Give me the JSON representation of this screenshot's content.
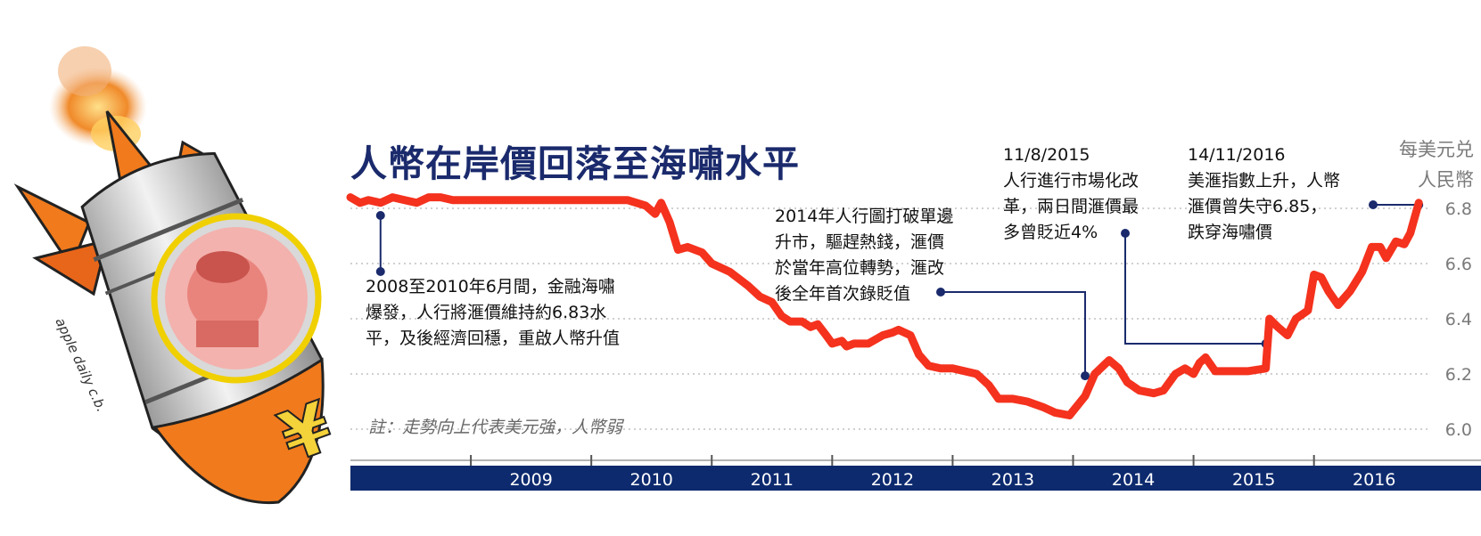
{
  "title": "人幣在岸價回落至海嘯水平",
  "unit_line1": "每美元兑",
  "unit_line2": "人民幣",
  "footnote": "註：走勢向上代表美元強，人幣弱",
  "annotations": [
    {
      "lines": [
        "2008至2010年6月間，金融海嘯",
        "爆發，人行將滙價維持約6.83水",
        "平，及後經濟回穩，重啟人幣升值"
      ],
      "x": 2008.25,
      "y": 6.8
    },
    {
      "lines": [
        "2014年人行圖打破單邊",
        "升市，驅趕熱錢，滙價",
        "於當年高位轉勢，滙改",
        "後全年首次錄貶值"
      ],
      "x": 2014.1,
      "y": 6.29
    },
    {
      "lines": [
        "11/8/2015",
        "人行進行市場化改",
        "革，兩日間滙價最",
        "多曾貶近4%"
      ],
      "x": 2015.6,
      "y": 6.36
    },
    {
      "lines": [
        "14/11/2016",
        "美滙指數上升，人幣",
        "滙價曾失守6.85，",
        "跌穿海嘯價"
      ],
      "x": 2016.87,
      "y": 6.82
    }
  ],
  "chart_data": {
    "type": "line",
    "title": "人幣在岸價回落至海嘯水平",
    "xlabel": "",
    "ylabel": "每美元兑 人民幣",
    "ylim": [
      6.0,
      6.9
    ],
    "xlim": [
      2008.0,
      2016.95
    ],
    "x_tick_labels": [
      "2009",
      "2010",
      "2011",
      "2012",
      "2013",
      "2014",
      "2015",
      "2016"
    ],
    "y_tick_labels": [
      "6.0",
      "6.2",
      "6.4",
      "6.6",
      "6.8"
    ],
    "y_ticks": [
      6.0,
      6.2,
      6.4,
      6.6,
      6.8
    ],
    "grid": "horizontal-dotted",
    "line_color": "#f4321e",
    "axis_band_color": "#0d2a6e",
    "series": [
      {
        "points": [
          [
            2008.0,
            6.84
          ],
          [
            2008.08,
            6.82
          ],
          [
            2008.15,
            6.83
          ],
          [
            2008.25,
            6.82
          ],
          [
            2008.35,
            6.84
          ],
          [
            2008.45,
            6.83
          ],
          [
            2008.55,
            6.82
          ],
          [
            2008.65,
            6.84
          ],
          [
            2008.75,
            6.84
          ],
          [
            2008.85,
            6.83
          ],
          [
            2009.0,
            6.83
          ],
          [
            2009.5,
            6.83
          ],
          [
            2010.0,
            6.83
          ],
          [
            2010.3,
            6.83
          ],
          [
            2010.45,
            6.81
          ],
          [
            2010.53,
            6.78
          ],
          [
            2010.58,
            6.82
          ],
          [
            2010.65,
            6.75
          ],
          [
            2010.72,
            6.65
          ],
          [
            2010.8,
            6.66
          ],
          [
            2010.92,
            6.64
          ],
          [
            2011.0,
            6.6
          ],
          [
            2011.15,
            6.57
          ],
          [
            2011.3,
            6.52
          ],
          [
            2011.4,
            6.48
          ],
          [
            2011.5,
            6.46
          ],
          [
            2011.58,
            6.41
          ],
          [
            2011.65,
            6.39
          ],
          [
            2011.75,
            6.39
          ],
          [
            2011.82,
            6.37
          ],
          [
            2011.88,
            6.38
          ],
          [
            2011.95,
            6.34
          ],
          [
            2012.0,
            6.31
          ],
          [
            2012.08,
            6.32
          ],
          [
            2012.12,
            6.3
          ],
          [
            2012.18,
            6.31
          ],
          [
            2012.3,
            6.31
          ],
          [
            2012.42,
            6.34
          ],
          [
            2012.5,
            6.35
          ],
          [
            2012.55,
            6.36
          ],
          [
            2012.65,
            6.34
          ],
          [
            2012.72,
            6.27
          ],
          [
            2012.8,
            6.23
          ],
          [
            2012.9,
            6.22
          ],
          [
            2013.0,
            6.22
          ],
          [
            2013.1,
            6.21
          ],
          [
            2013.2,
            6.2
          ],
          [
            2013.3,
            6.16
          ],
          [
            2013.38,
            6.11
          ],
          [
            2013.5,
            6.11
          ],
          [
            2013.62,
            6.1
          ],
          [
            2013.75,
            6.08
          ],
          [
            2013.85,
            6.06
          ],
          [
            2013.97,
            6.05
          ],
          [
            2014.1,
            6.12
          ],
          [
            2014.18,
            6.2
          ],
          [
            2014.3,
            6.25
          ],
          [
            2014.38,
            6.22
          ],
          [
            2014.45,
            6.17
          ],
          [
            2014.55,
            6.14
          ],
          [
            2014.67,
            6.13
          ],
          [
            2014.75,
            6.14
          ],
          [
            2014.85,
            6.2
          ],
          [
            2014.93,
            6.22
          ],
          [
            2015.0,
            6.2
          ],
          [
            2015.05,
            6.24
          ],
          [
            2015.1,
            6.26
          ],
          [
            2015.18,
            6.21
          ],
          [
            2015.3,
            6.21
          ],
          [
            2015.45,
            6.21
          ],
          [
            2015.6,
            6.22
          ],
          [
            2015.63,
            6.4
          ],
          [
            2015.7,
            6.37
          ],
          [
            2015.78,
            6.34
          ],
          [
            2015.85,
            6.4
          ],
          [
            2015.95,
            6.43
          ],
          [
            2016.0,
            6.56
          ],
          [
            2016.06,
            6.55
          ],
          [
            2016.12,
            6.5
          ],
          [
            2016.2,
            6.45
          ],
          [
            2016.3,
            6.5
          ],
          [
            2016.4,
            6.57
          ],
          [
            2016.48,
            6.66
          ],
          [
            2016.55,
            6.66
          ],
          [
            2016.6,
            6.62
          ],
          [
            2016.68,
            6.68
          ],
          [
            2016.75,
            6.67
          ],
          [
            2016.8,
            6.71
          ],
          [
            2016.87,
            6.82
          ]
        ]
      }
    ]
  }
}
